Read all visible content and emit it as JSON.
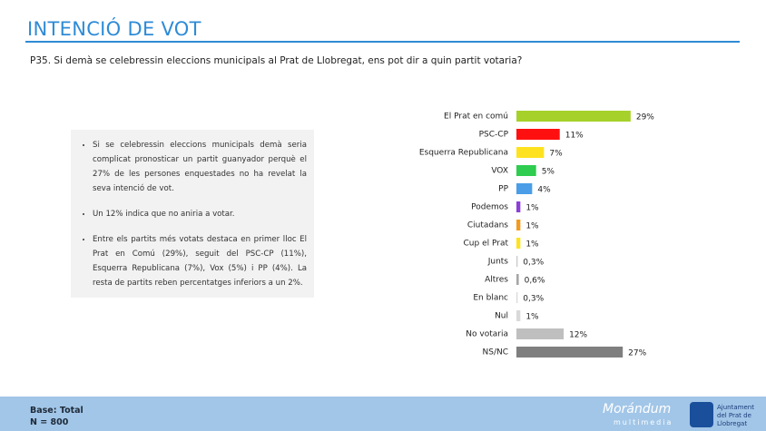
{
  "header": {
    "title": "INTENCIÓ DE VOT",
    "question": "P35. Si demà se celebressin eleccions municipals al Prat de Llobregat, ens pot dir a quin partit votaria?"
  },
  "notes": [
    "Si se celebressin eleccions municipals demà seria complicat pronosticar un partit guanyador perquè el 27% de les persones enquestades no ha revelat la seva intenció de vot.",
    "Un 12% indica que no aniria a votar.",
    "Entre els partits més votats destaca en primer lloc El Prat en Comú (29%), seguit del PSC-CP (11%), Esquerra Republicana (7%), Vox (5%) i PP (4%). La resta de partits reben percentatges inferiors a un 2%."
  ],
  "footer": {
    "base": "Base: Total",
    "n": "N = 800",
    "brand": "Morándum",
    "brand_sub": "multimedia",
    "client": "Ajuntament del Prat de Llobregat"
  },
  "chart_data": {
    "type": "hbar",
    "categories": [
      "El Prat en comú",
      "PSC-CP",
      "Esquerra Republicana",
      "VOX",
      "PP",
      "Podemos",
      "Ciutadans",
      "Cup el Prat",
      "Junts",
      "Altres",
      "En blanc",
      "Nul",
      "No votaria",
      "NS/NC"
    ],
    "values": [
      29,
      11,
      7,
      5,
      4,
      1,
      1,
      1,
      0.3,
      0.6,
      0.3,
      1,
      12,
      27
    ],
    "value_labels": [
      "29%",
      "11%",
      "7%",
      "5%",
      "4%",
      "1%",
      "1%",
      "1%",
      "0,3%",
      "0,6%",
      "0,3%",
      "1%",
      "12%",
      "27%"
    ],
    "colors": [
      "#a6d12b",
      "#ff1010",
      "#ffe21f",
      "#2ecc4f",
      "#4a9de6",
      "#8b3fd6",
      "#f39a1e",
      "#ffe21f",
      "#c9c9c9",
      "#a6a6a6",
      "#d9d9d9",
      "#d9d9d9",
      "#bfbfbf",
      "#7f7f7f"
    ]
  }
}
